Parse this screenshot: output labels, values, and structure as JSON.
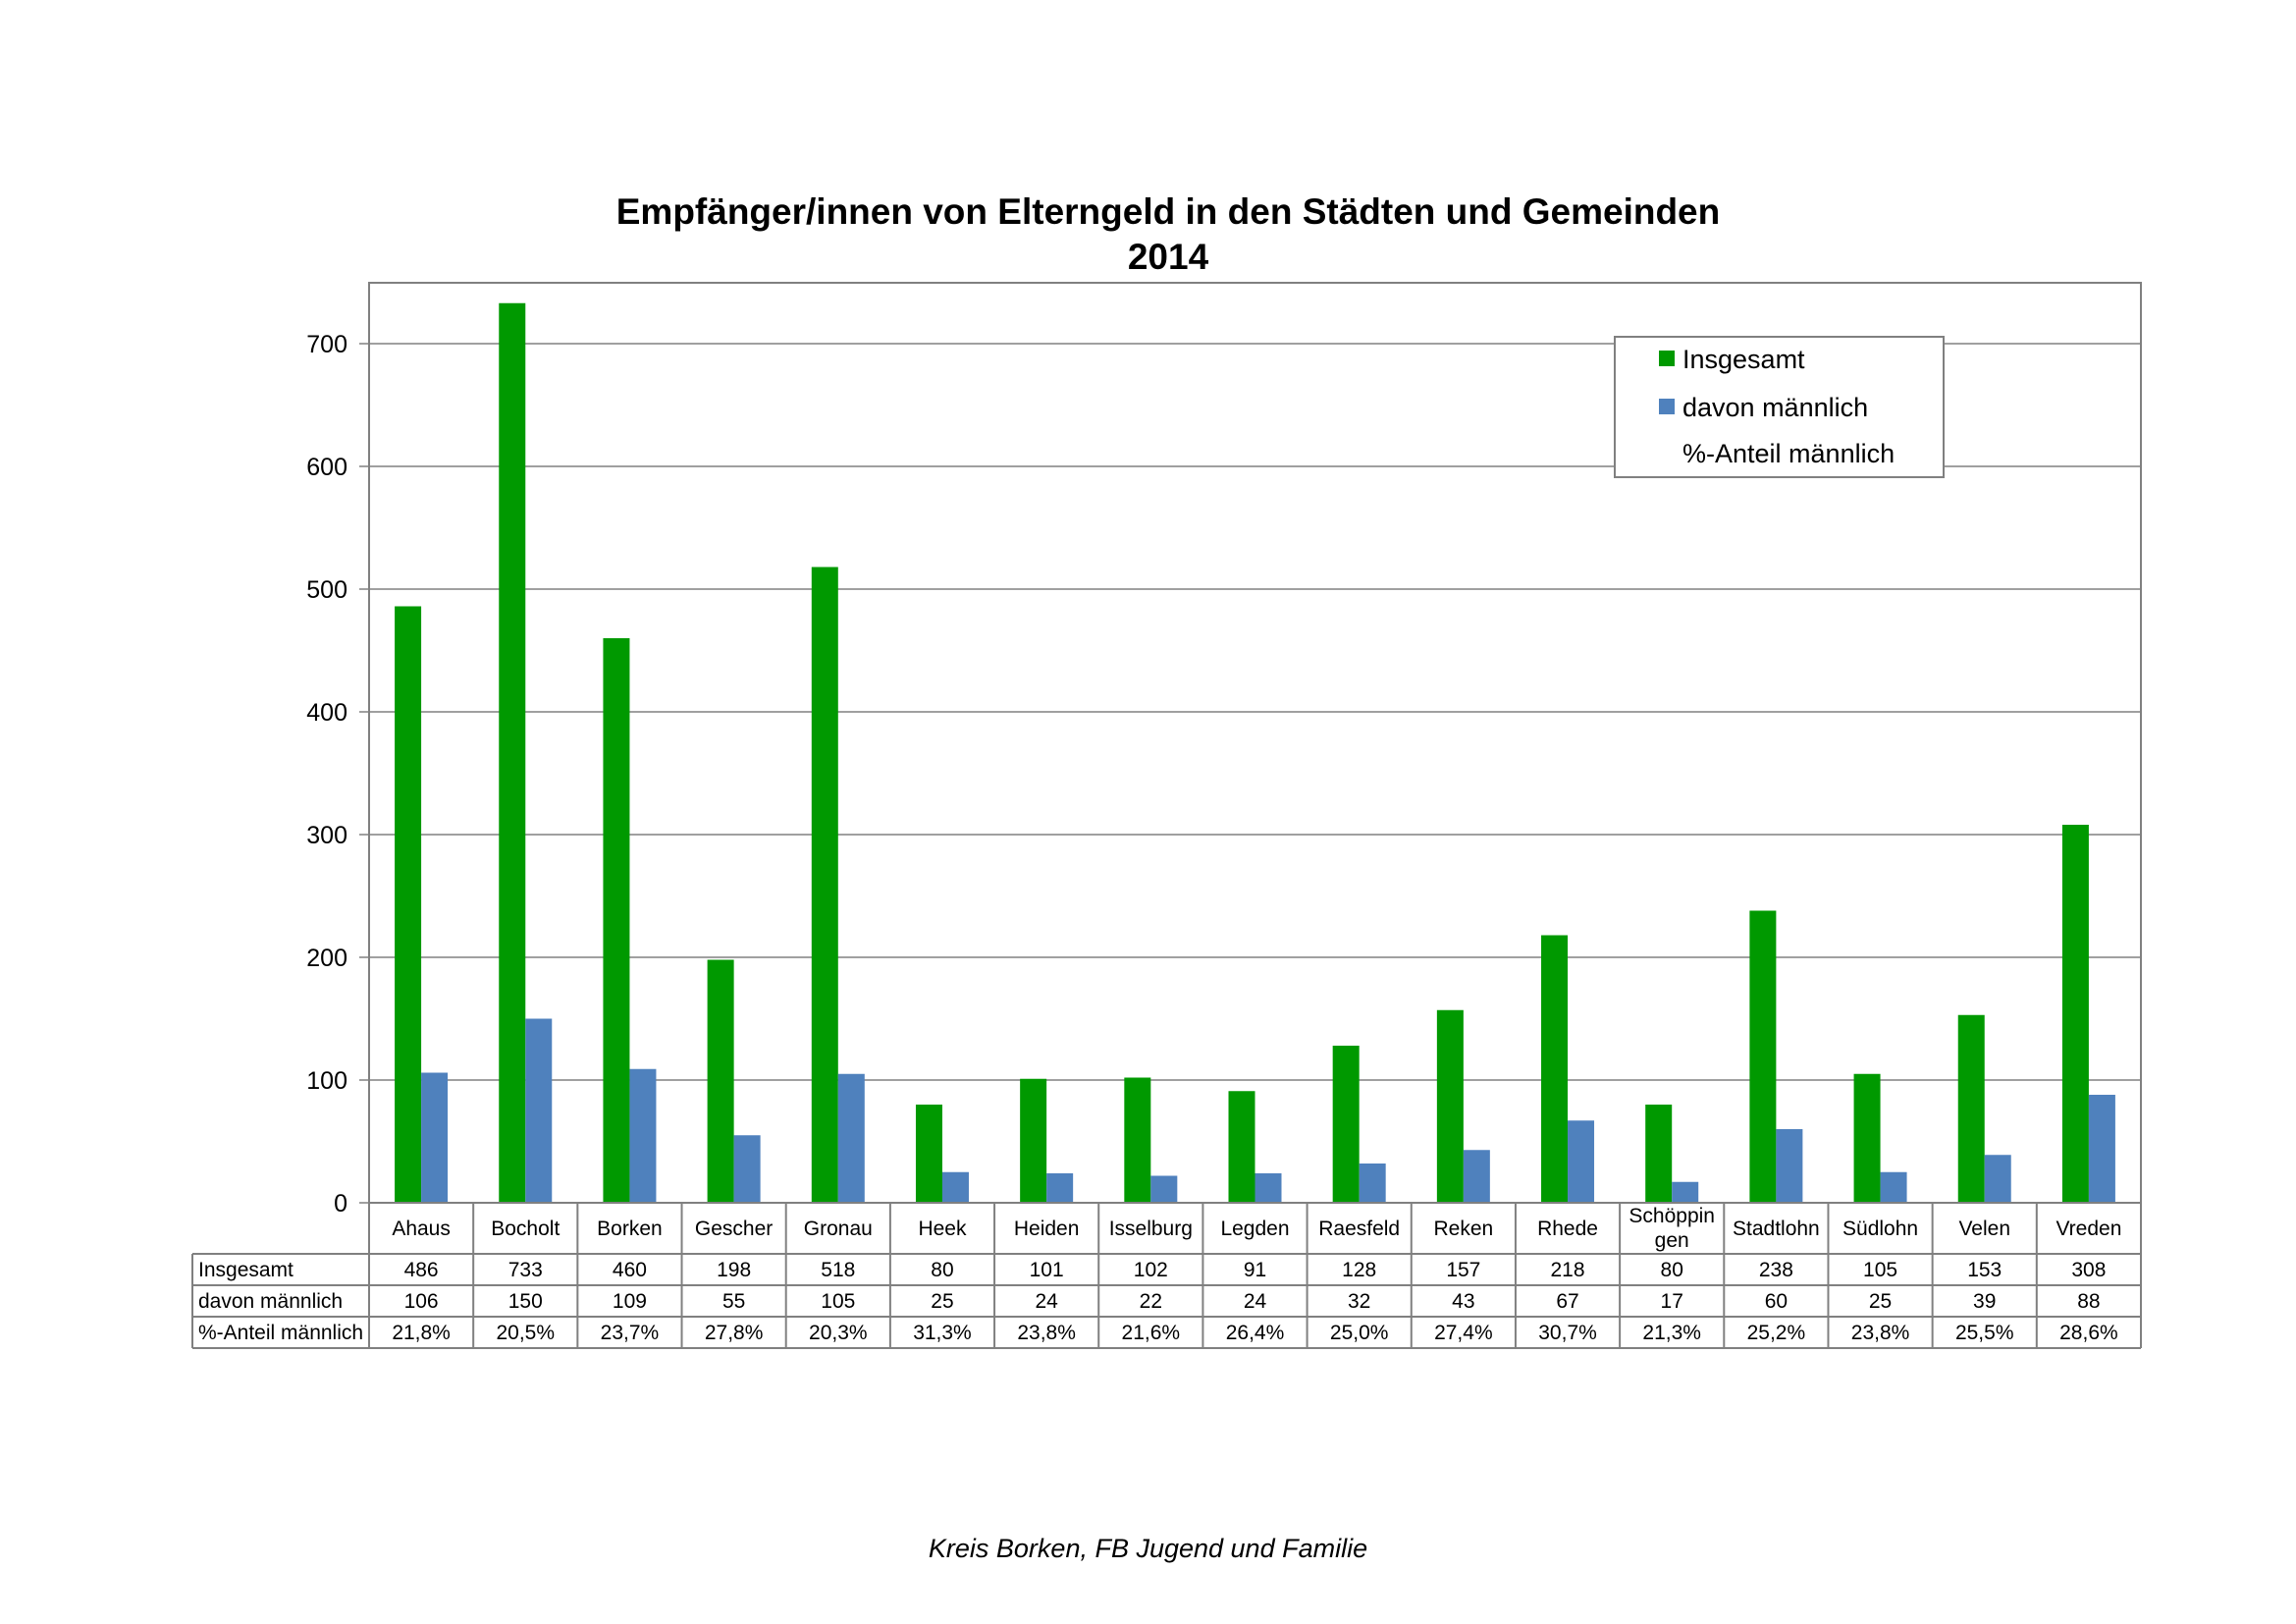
{
  "chart_data": {
    "type": "bar",
    "title": "Empfänger/innen von Elterngeld in den Städten und Gemeinden",
    "subtitle": "2014",
    "ylim": [
      0,
      750
    ],
    "yticks": [
      0,
      100,
      200,
      300,
      400,
      500,
      600,
      700
    ],
    "grid": true,
    "legend_position": "top-right",
    "categories": [
      "Ahaus",
      "Bocholt",
      "Borken",
      "Gescher",
      "Gronau",
      "Heek",
      "Heiden",
      "Isselburg",
      "Legden",
      "Raesfeld",
      "Reken",
      "Rhede",
      "Schöppin gen",
      "Stadtlohn",
      "Südlohn",
      "Velen",
      "Vreden"
    ],
    "series": [
      {
        "name": "Insgesamt",
        "color": "#009900",
        "values": [
          486,
          733,
          460,
          198,
          518,
          80,
          101,
          102,
          91,
          128,
          157,
          218,
          80,
          238,
          105,
          153,
          308
        ]
      },
      {
        "name": "davon männlich",
        "color": "#4f81bd",
        "values": [
          106,
          150,
          109,
          55,
          105,
          25,
          24,
          22,
          24,
          32,
          43,
          67,
          17,
          60,
          25,
          39,
          88
        ]
      }
    ],
    "table_rows": [
      {
        "label": "Insgesamt",
        "cells": [
          "486",
          "733",
          "460",
          "198",
          "518",
          "80",
          "101",
          "102",
          "91",
          "128",
          "157",
          "218",
          "80",
          "238",
          "105",
          "153",
          "308"
        ]
      },
      {
        "label": "davon männlich",
        "cells": [
          "106",
          "150",
          "109",
          "55",
          "105",
          "25",
          "24",
          "22",
          "24",
          "32",
          "43",
          "67",
          "17",
          "60",
          "25",
          "39",
          "88"
        ]
      },
      {
        "label": "%-Anteil männlich",
        "cells": [
          "21,8%",
          "20,5%",
          "23,7%",
          "27,8%",
          "20,3%",
          "31,3%",
          "23,8%",
          "21,6%",
          "26,4%",
          "25,0%",
          "27,4%",
          "30,7%",
          "21,3%",
          "25,2%",
          "23,8%",
          "25,5%",
          "28,6%"
        ]
      }
    ],
    "legend": [
      "Insgesamt",
      "davon männlich",
      "%-Anteil männlich"
    ]
  },
  "footer": "Kreis Borken, FB Jugend und Familie"
}
